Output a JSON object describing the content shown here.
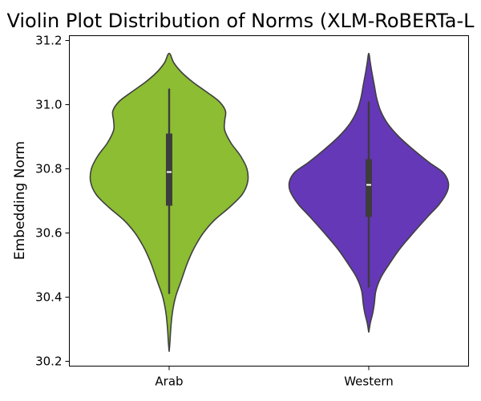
{
  "chart_data": {
    "type": "violin",
    "title": "Violin Plot Distribution of Norms (XLM-RoBERTa-L",
    "xlabel": "",
    "ylabel": "Embedding Norm",
    "ylim": [
      30.185,
      31.215
    ],
    "yticks": [
      30.2,
      30.4,
      30.6,
      30.8,
      31.0,
      31.2
    ],
    "ytick_labels": [
      "30.2",
      "30.4",
      "30.6",
      "30.8",
      "31.0",
      "31.2"
    ],
    "categories": [
      "Arab",
      "Western"
    ],
    "grid": false,
    "series": [
      {
        "category": "Arab",
        "color": "#8cbd32",
        "min": 30.23,
        "max": 31.16,
        "q1": 30.685,
        "median": 30.79,
        "q3": 30.91,
        "whisker_low": 30.41,
        "whisker_high": 31.05,
        "density": [
          [
            30.23,
            0.0
          ],
          [
            30.26,
            0.01
          ],
          [
            30.3,
            0.02
          ],
          [
            30.35,
            0.04
          ],
          [
            30.4,
            0.08
          ],
          [
            30.45,
            0.15
          ],
          [
            30.5,
            0.22
          ],
          [
            30.53,
            0.27
          ],
          [
            30.56,
            0.33
          ],
          [
            30.6,
            0.43
          ],
          [
            30.64,
            0.57
          ],
          [
            30.68,
            0.76
          ],
          [
            30.72,
            0.92
          ],
          [
            30.76,
            0.99
          ],
          [
            30.8,
            0.98
          ],
          [
            30.84,
            0.9
          ],
          [
            30.88,
            0.78
          ],
          [
            30.92,
            0.7
          ],
          [
            30.95,
            0.7
          ],
          [
            30.98,
            0.71
          ],
          [
            31.01,
            0.63
          ],
          [
            31.04,
            0.47
          ],
          [
            31.07,
            0.3
          ],
          [
            31.1,
            0.16
          ],
          [
            31.13,
            0.06
          ],
          [
            31.16,
            0.0
          ]
        ]
      },
      {
        "category": "Western",
        "color": "#6538b8",
        "min": 30.29,
        "max": 31.16,
        "q1": 30.65,
        "median": 30.75,
        "q3": 30.83,
        "whisker_low": 30.43,
        "whisker_high": 31.01,
        "density": [
          [
            30.29,
            0.0
          ],
          [
            30.32,
            0.02
          ],
          [
            30.35,
            0.05
          ],
          [
            30.38,
            0.07
          ],
          [
            30.42,
            0.09
          ],
          [
            30.46,
            0.15
          ],
          [
            30.5,
            0.25
          ],
          [
            30.55,
            0.39
          ],
          [
            30.6,
            0.56
          ],
          [
            30.65,
            0.74
          ],
          [
            30.69,
            0.89
          ],
          [
            30.73,
            0.99
          ],
          [
            30.76,
            1.0
          ],
          [
            30.79,
            0.93
          ],
          [
            30.82,
            0.76
          ],
          [
            30.86,
            0.56
          ],
          [
            30.9,
            0.38
          ],
          [
            30.94,
            0.24
          ],
          [
            30.98,
            0.15
          ],
          [
            31.02,
            0.1
          ],
          [
            31.06,
            0.07
          ],
          [
            31.1,
            0.04
          ],
          [
            31.13,
            0.02
          ],
          [
            31.16,
            0.0
          ]
        ]
      }
    ]
  }
}
